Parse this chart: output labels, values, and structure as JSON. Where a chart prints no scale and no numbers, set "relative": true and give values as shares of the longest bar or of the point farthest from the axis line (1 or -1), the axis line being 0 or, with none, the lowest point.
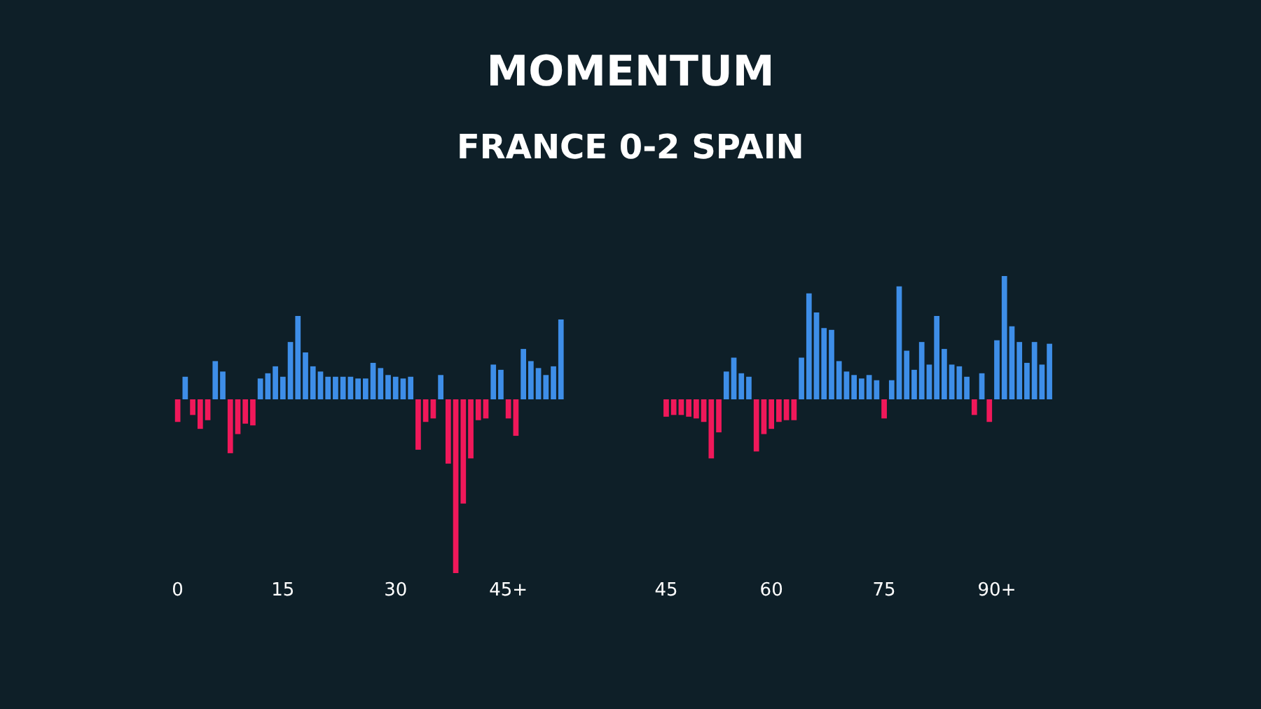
{
  "chart_data": {
    "type": "bar",
    "title": "MOMENTUM",
    "subtitle": "FRANCE 0-2 SPAIN",
    "relative": true,
    "legend": false,
    "grid": false,
    "categories": [
      "0",
      null,
      null,
      null,
      null,
      null,
      null,
      null,
      null,
      null,
      null,
      null,
      null,
      null,
      "15",
      null,
      null,
      null,
      null,
      null,
      null,
      null,
      null,
      null,
      null,
      null,
      null,
      null,
      null,
      "30",
      null,
      null,
      null,
      null,
      null,
      null,
      null,
      null,
      null,
      null,
      null,
      null,
      null,
      null,
      "45+",
      null,
      null,
      null,
      null,
      null,
      null,
      null,
      null,
      null,
      null,
      null,
      null,
      null,
      null,
      null,
      null,
      null,
      null,
      null,
      null,
      "45",
      null,
      null,
      null,
      null,
      null,
      null,
      null,
      null,
      null,
      null,
      null,
      null,
      null,
      "60",
      null,
      null,
      null,
      null,
      null,
      null,
      null,
      null,
      null,
      null,
      null,
      null,
      null,
      null,
      "75",
      null,
      null,
      null,
      null,
      null,
      null,
      null,
      null,
      null,
      null,
      null,
      null,
      null,
      null,
      "90+",
      null,
      null,
      null,
      null,
      null,
      null,
      null
    ],
    "series": [
      {
        "color": "#3e8ee8",
        "values": [
          null,
          0.13,
          null,
          null,
          null,
          0.22,
          0.16,
          null,
          null,
          null,
          null,
          0.12,
          0.15,
          0.19,
          0.13,
          0.33,
          0.48,
          0.27,
          0.19,
          0.16,
          0.13,
          0.13,
          0.13,
          0.13,
          0.12,
          0.12,
          0.21,
          0.18,
          0.14,
          0.13,
          0.12,
          0.13,
          null,
          null,
          null,
          0.14,
          null,
          null,
          null,
          null,
          null,
          null,
          0.2,
          0.17,
          null,
          null,
          0.29,
          0.22,
          0.18,
          0.14,
          0.19,
          0.46,
          null,
          null,
          null,
          null,
          null,
          null,
          null,
          null,
          null,
          null,
          null,
          null,
          null,
          null,
          null,
          null,
          null,
          null,
          null,
          null,
          null,
          0.16,
          0.24,
          0.15,
          0.13,
          null,
          null,
          null,
          null,
          null,
          null,
          0.24,
          0.61,
          0.5,
          0.41,
          0.4,
          0.22,
          0.16,
          0.14,
          0.12,
          0.14,
          0.11,
          null,
          0.11,
          0.65,
          0.28,
          0.17,
          0.33,
          0.2,
          0.48,
          0.29,
          0.2,
          0.19,
          0.13,
          null,
          0.15,
          null,
          0.34,
          0.71,
          0.42,
          0.33,
          0.21,
          0.33,
          0.2,
          0.32
        ]
      },
      {
        "color": "#f0185a",
        "values": [
          -0.13,
          null,
          -0.09,
          -0.17,
          -0.12,
          null,
          null,
          -0.31,
          -0.2,
          -0.14,
          -0.15,
          null,
          null,
          null,
          null,
          null,
          null,
          null,
          null,
          null,
          null,
          null,
          null,
          null,
          null,
          null,
          null,
          null,
          null,
          null,
          null,
          null,
          -0.29,
          -0.13,
          -0.11,
          null,
          -0.37,
          -1,
          -0.6,
          -0.34,
          -0.12,
          -0.11,
          null,
          null,
          -0.11,
          -0.21,
          null,
          null,
          null,
          null,
          null,
          null,
          null,
          null,
          null,
          null,
          null,
          null,
          null,
          null,
          null,
          null,
          null,
          null,
          null,
          -0.1,
          -0.09,
          -0.09,
          -0.1,
          -0.11,
          -0.13,
          -0.34,
          -0.19,
          null,
          null,
          null,
          null,
          -0.3,
          -0.2,
          -0.17,
          -0.13,
          -0.12,
          -0.12,
          null,
          null,
          null,
          null,
          null,
          null,
          null,
          null,
          null,
          null,
          null,
          -0.11,
          null,
          null,
          null,
          null,
          null,
          null,
          null,
          null,
          null,
          null,
          null,
          -0.09,
          null,
          -0.13,
          null,
          null,
          null,
          null,
          null,
          null,
          null,
          null
        ]
      }
    ]
  }
}
